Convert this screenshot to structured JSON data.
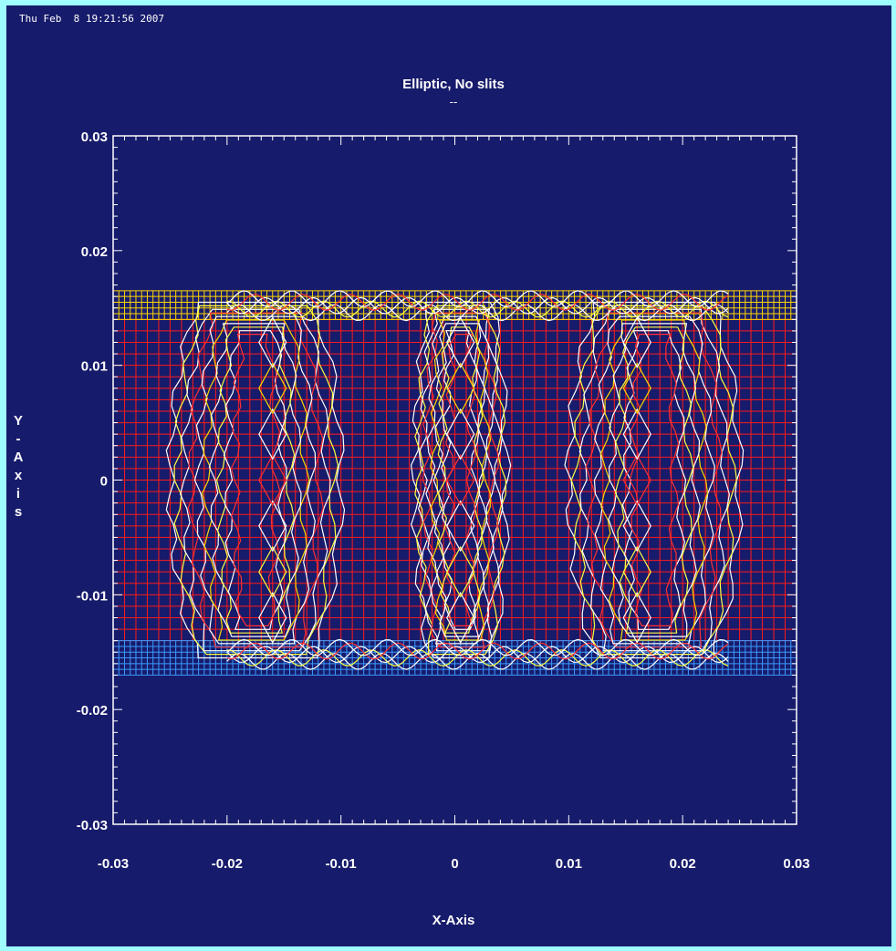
{
  "header": {
    "timestamp": "Thu Feb  8 19:21:56 2007"
  },
  "colors": {
    "page_border": "#9fffff",
    "background": "#171b6b",
    "axis": "#ffffff",
    "grid_red": "#ff1a1a",
    "grid_yellow": "#ffd700",
    "grid_blue": "#3a9bff",
    "contour_white": "#ffffff",
    "contour_yellow": "#ffff40",
    "contour_red": "#ff3030"
  },
  "chart_data": {
    "type": "contour",
    "title": "Elliptic, No slits",
    "subtitle": "--",
    "xlabel": "X-Axis",
    "ylabel": "Y-Axis",
    "xlim": [
      -0.03,
      0.03
    ],
    "ylim": [
      -0.03,
      0.03
    ],
    "x_tick_labels": [
      "-0.03",
      "-0.02",
      "-0.01",
      "0",
      "0.01",
      "0.02",
      "0.03"
    ],
    "y_tick_labels": [
      "0.03",
      "0.02",
      "0.01",
      "0",
      "-0.01",
      "-0.02",
      "-0.03"
    ],
    "x_ticks": [
      -0.03,
      -0.02,
      -0.01,
      0,
      0.01,
      0.02,
      0.03
    ],
    "y_ticks": [
      0.03,
      0.02,
      0.01,
      0,
      -0.01,
      -0.02,
      -0.03
    ],
    "region": {
      "x": [
        -0.03,
        0.03
      ],
      "y_core": [
        -0.014,
        0.014
      ],
      "y_band_top": [
        0.014,
        0.0165
      ],
      "y_band_bottom": [
        -0.017,
        -0.014
      ]
    },
    "grid_step": 0.001,
    "lobes": [
      {
        "x_center": -0.0175,
        "half_width": 0.0075,
        "x_peak": -0.016,
        "half_height": 0.0155
      },
      {
        "x_center": 0.0175,
        "half_width": 0.0075,
        "x_peak": 0.016,
        "half_height": 0.0155
      },
      {
        "x_center": 0.0005,
        "half_width": 0.004,
        "x_peak": 0.0005,
        "half_height": 0.0155
      }
    ]
  }
}
